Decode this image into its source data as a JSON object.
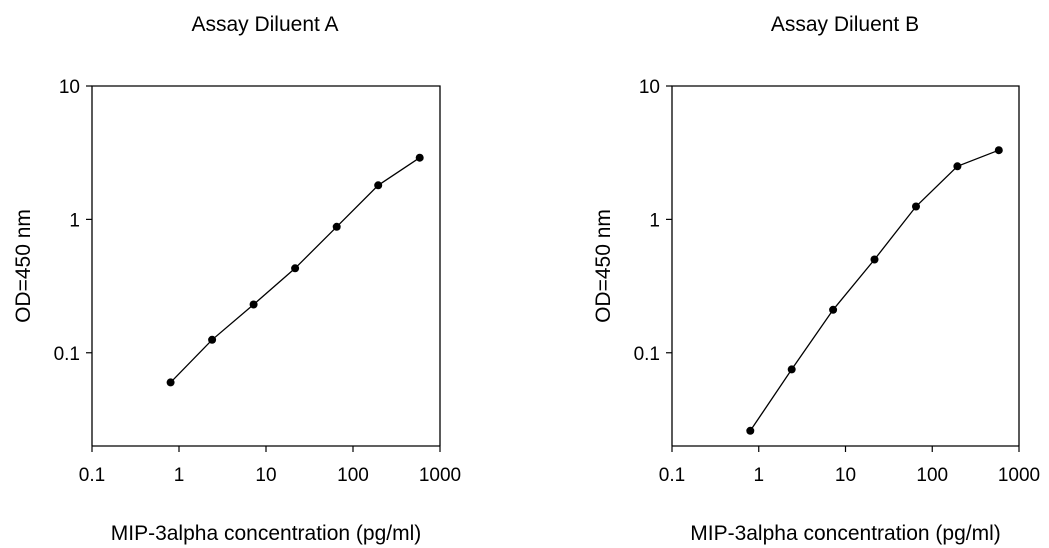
{
  "chart_data": [
    {
      "type": "line",
      "title": "Assay Diluent A",
      "xlabel": "MIP-3alpha concentration (pg/ml)",
      "ylabel": "OD=450 nm",
      "xscale": "log",
      "yscale": "log",
      "xlim": [
        0.1,
        1000
      ],
      "ylim": [
        0.02,
        10
      ],
      "xticks": [
        0.1,
        1,
        10,
        100,
        1000
      ],
      "xtick_labels": [
        "0.1",
        "1",
        "10",
        "100",
        "1000"
      ],
      "yticks": [
        0.1,
        1,
        10
      ],
      "ytick_labels": [
        "0.1",
        "1",
        "10"
      ],
      "grid": false,
      "series": [
        {
          "x": [
            0.8,
            2.4,
            7.2,
            21.6,
            65,
            195,
            585
          ],
          "y": [
            0.06,
            0.125,
            0.23,
            0.43,
            0.88,
            1.8,
            2.9
          ]
        }
      ]
    },
    {
      "type": "line",
      "title": "Assay Diluent B",
      "xlabel": "MIP-3alpha concentration (pg/ml)",
      "ylabel": "OD=450 nm",
      "xscale": "log",
      "yscale": "log",
      "xlim": [
        0.1,
        1000
      ],
      "ylim": [
        0.02,
        10
      ],
      "xticks": [
        0.1,
        1,
        10,
        100,
        1000
      ],
      "xtick_labels": [
        "0.1",
        "1",
        "10",
        "100",
        "1000"
      ],
      "yticks": [
        0.1,
        1,
        10
      ],
      "ytick_labels": [
        "0.1",
        "1",
        "10"
      ],
      "grid": false,
      "series": [
        {
          "x": [
            0.8,
            2.4,
            7.2,
            21.6,
            65,
            195,
            585
          ],
          "y": [
            0.026,
            0.075,
            0.21,
            0.5,
            1.25,
            2.5,
            3.3
          ]
        }
      ]
    }
  ]
}
